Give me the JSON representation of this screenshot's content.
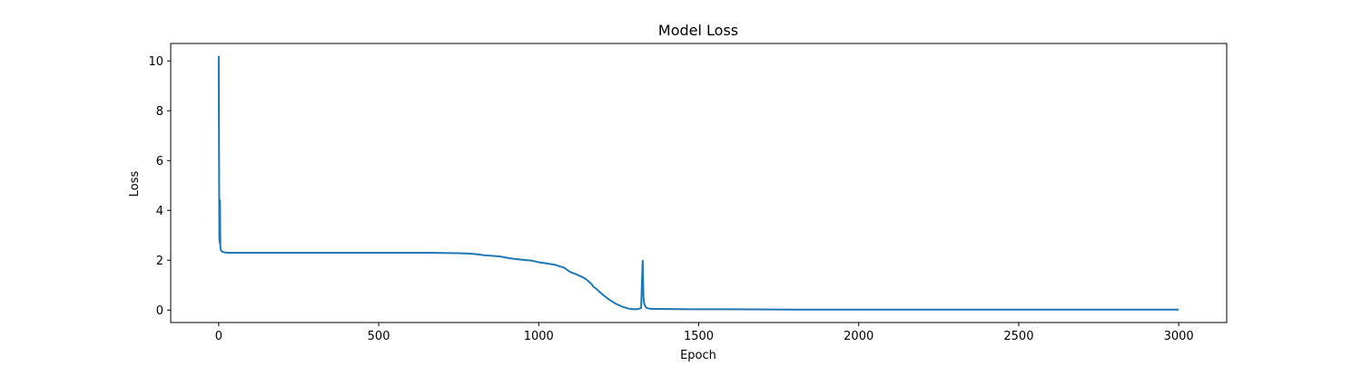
{
  "chart_data": {
    "type": "line",
    "title": "Model Loss",
    "xlabel": "Epoch",
    "ylabel": "Loss",
    "xlim": [
      -150,
      3150
    ],
    "ylim": [
      -0.5,
      10.7
    ],
    "xticks": [
      0,
      500,
      1000,
      1500,
      2000,
      2500,
      3000
    ],
    "yticks": [
      0,
      2,
      4,
      6,
      8,
      10
    ],
    "grid": false,
    "line_color": "#1f77b4",
    "series": [
      {
        "x": [
          0,
          2,
          3,
          4,
          5,
          6,
          7,
          8,
          10,
          15,
          20,
          30,
          50,
          100,
          150,
          200,
          300,
          400,
          500,
          600,
          650,
          700,
          750,
          780,
          800,
          830,
          850,
          880,
          900,
          920,
          950,
          980,
          1000,
          1020,
          1050,
          1070,
          1080,
          1090,
          1100,
          1120,
          1140,
          1150,
          1160,
          1165,
          1170,
          1180,
          1200,
          1220,
          1240,
          1260,
          1280,
          1300,
          1310,
          1320,
          1325,
          1327,
          1328,
          1330,
          1333,
          1336,
          1340,
          1350,
          1400,
          1500,
          1600,
          1800,
          2000,
          2200,
          2400,
          2600,
          2800,
          3000
        ],
        "y": [
          10.2,
          2.9,
          2.7,
          4.4,
          2.6,
          2.45,
          2.4,
          2.38,
          2.35,
          2.33,
          2.31,
          2.3,
          2.3,
          2.3,
          2.3,
          2.3,
          2.3,
          2.3,
          2.3,
          2.3,
          2.3,
          2.29,
          2.28,
          2.27,
          2.25,
          2.2,
          2.18,
          2.15,
          2.1,
          2.06,
          2.02,
          1.98,
          1.92,
          1.88,
          1.82,
          1.74,
          1.7,
          1.6,
          1.52,
          1.42,
          1.3,
          1.22,
          1.1,
          1.05,
          0.95,
          0.85,
          0.62,
          0.42,
          0.26,
          0.14,
          0.06,
          0.03,
          0.04,
          0.08,
          1.98,
          0.7,
          0.4,
          0.25,
          0.15,
          0.1,
          0.07,
          0.05,
          0.04,
          0.03,
          0.03,
          0.02,
          0.02,
          0.02,
          0.02,
          0.02,
          0.02,
          0.02
        ]
      }
    ]
  }
}
